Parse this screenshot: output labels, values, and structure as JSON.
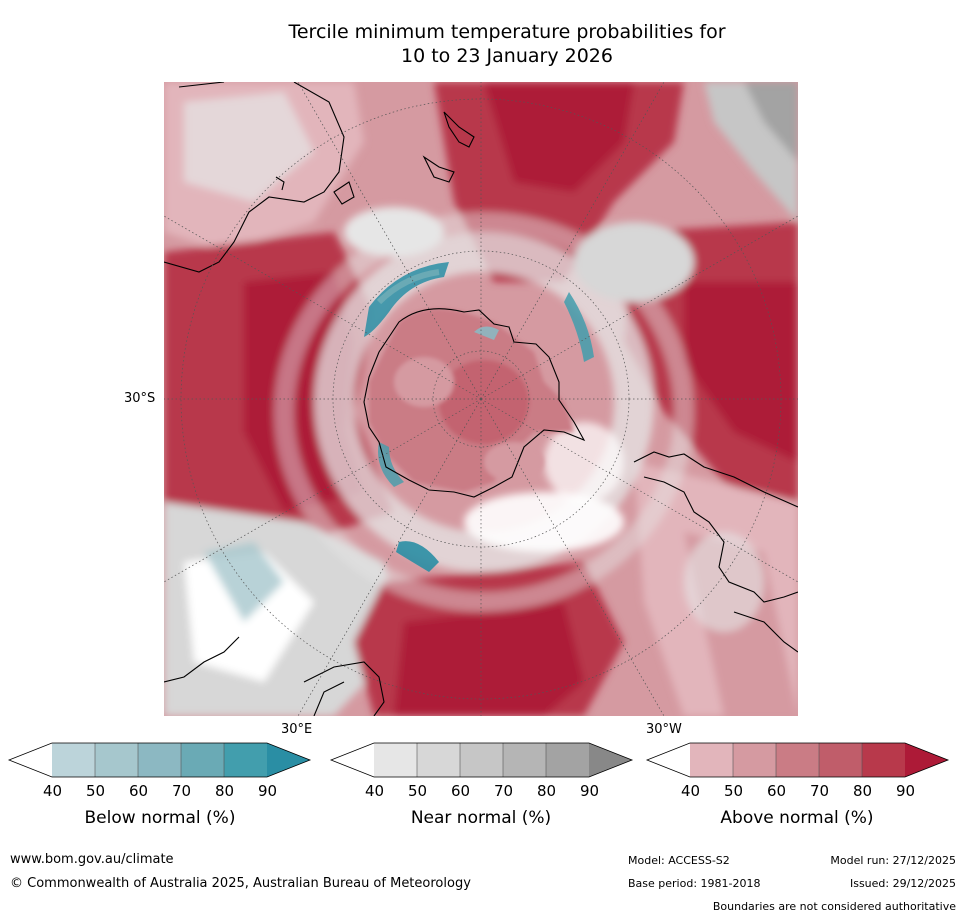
{
  "title": {
    "line1": "Tercile minimum temperature probabilities for",
    "line2": "10 to 23 January 2026"
  },
  "map": {
    "labels": {
      "lat30s": "30°S",
      "lon30e": "30°E",
      "lon30w": "30°W"
    },
    "colors": {
      "above": [
        "#e2b5bb",
        "#d59aa1",
        "#ca7c85",
        "#c05d6a",
        "#b8394b",
        "#ad1a37"
      ],
      "below": [
        "#bcd4da",
        "#a6c7cd",
        "#8cb8c2",
        "#6aaab5",
        "#429ead",
        "#2a8ea4"
      ],
      "near": [
        "#e6e6e6",
        "#d7d7d7",
        "#c6c6c6",
        "#b5b5b5",
        "#a3a3a3",
        "#888888"
      ]
    }
  },
  "colorbars": {
    "below": {
      "title": "Below normal (%)",
      "ticks": [
        "40",
        "50",
        "60",
        "70",
        "80",
        "90"
      ],
      "colors": [
        "#bcd4da",
        "#a6c7cd",
        "#8cb8c2",
        "#6aaab5",
        "#429ead",
        "#2a8ea4"
      ]
    },
    "near": {
      "title": "Near normal (%)",
      "ticks": [
        "40",
        "50",
        "60",
        "70",
        "80",
        "90"
      ],
      "colors": [
        "#e6e6e6",
        "#d7d7d7",
        "#c6c6c6",
        "#b5b5b5",
        "#a3a3a3",
        "#888888"
      ]
    },
    "above": {
      "title": "Above normal (%)",
      "ticks": [
        "40",
        "50",
        "60",
        "70",
        "80",
        "90"
      ],
      "colors": [
        "#e2b5bb",
        "#d59aa1",
        "#ca7c85",
        "#c05d6a",
        "#b8394b",
        "#ad1a37"
      ]
    }
  },
  "footer": {
    "website": "www.bom.gov.au/climate",
    "copyright": "© Commonwealth of Australia 2025, Australian Bureau of Meteorology",
    "model": "Model: ACCESS-S2",
    "base_period": "Base period: 1981-2018",
    "model_run": "Model run: 27/12/2025",
    "issued": "Issued: 29/12/2025",
    "disclaimer": "Boundaries are not considered authoritative"
  }
}
